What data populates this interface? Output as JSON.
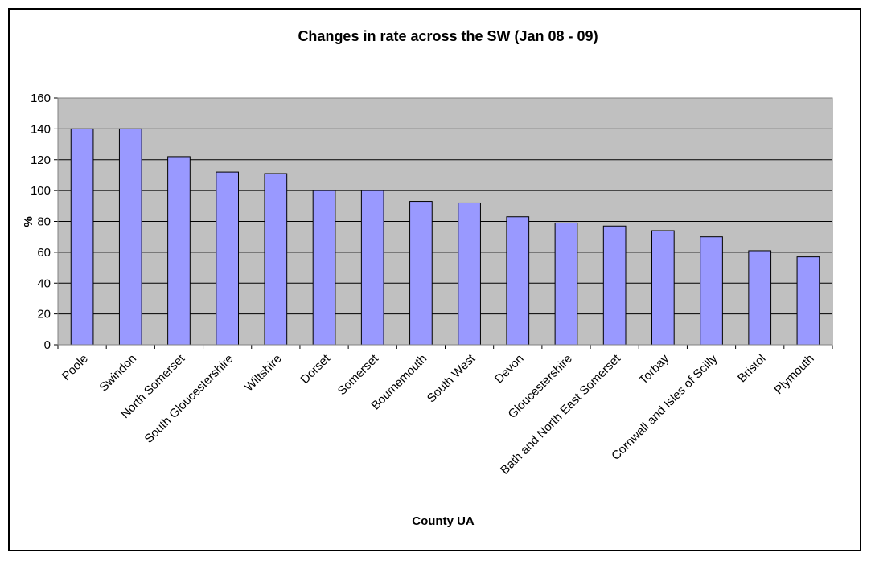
{
  "chart_data": {
    "type": "bar",
    "title": "Changes in rate across the SW (Jan 08 - 09)",
    "xlabel": "County UA",
    "ylabel": "%",
    "ylim": [
      0,
      160
    ],
    "yticks": [
      0,
      20,
      40,
      60,
      80,
      100,
      120,
      140,
      160
    ],
    "grid": true,
    "categories": [
      "Poole",
      "Swindon",
      "North Somerset",
      "South Gloucestershire",
      "Wiltshire",
      "Dorset",
      "Somerset",
      "Bournemouth",
      "South West",
      "Devon",
      "Gloucestershire",
      "Bath and North East Somerset",
      "Torbay",
      "Cornwall and Isles of Scilly",
      "Bristol",
      "Plymouth"
    ],
    "values": [
      140,
      140,
      122,
      112,
      111,
      100,
      100,
      93,
      92,
      83,
      79,
      77,
      74,
      70,
      61,
      57
    ],
    "colors": {
      "bar_fill": "#9999ff",
      "bar_stroke": "#000000",
      "plot_background": "#c0c0c0",
      "gridline": "#000000"
    }
  }
}
